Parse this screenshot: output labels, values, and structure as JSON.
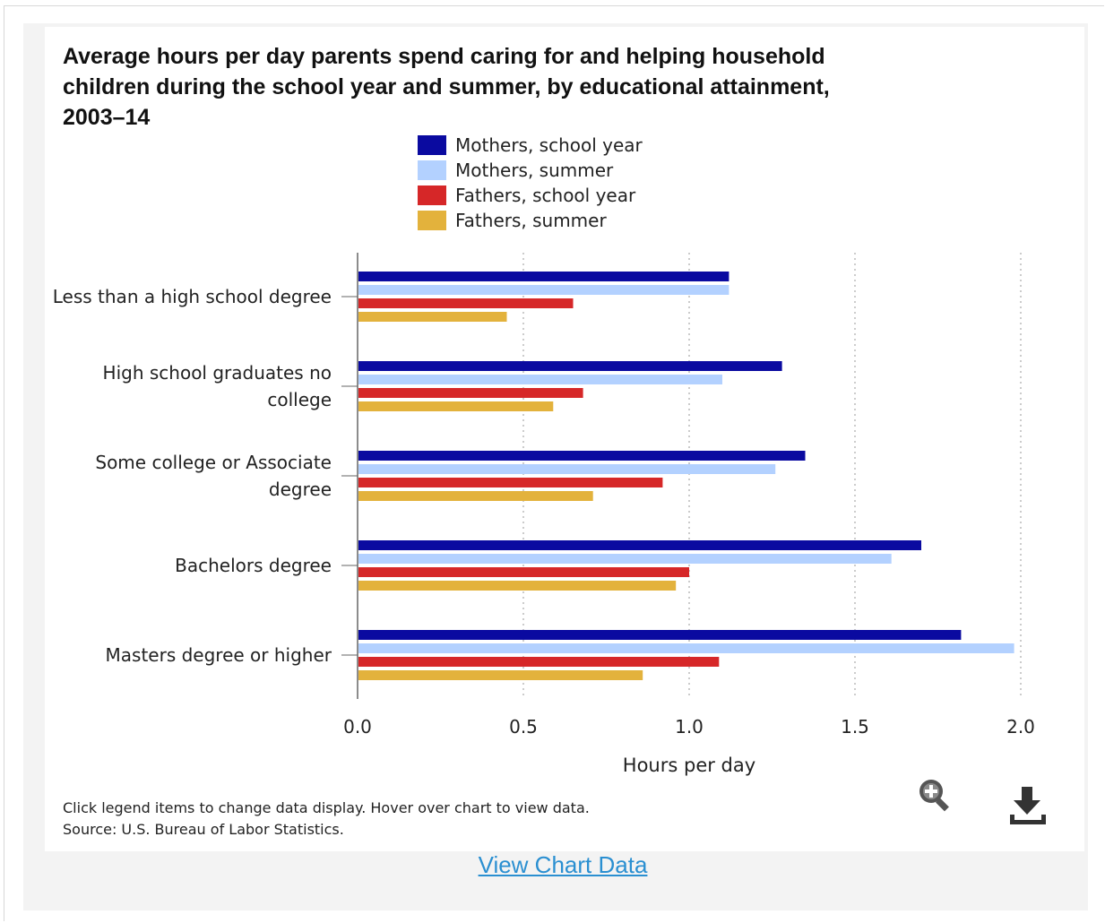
{
  "colors": {
    "mothers_school": "#0a0aa0",
    "mothers_summer": "#b3d1ff",
    "fathers_school": "#d62728",
    "fathers_summer": "#e3b23c",
    "grid": "#bbbbbb",
    "axis": "#666666",
    "link": "#2a8fd1"
  },
  "chart_data": {
    "type": "bar",
    "orientation": "horizontal",
    "title": "Average hours per day parents spend caring for and helping household children during the school year and summer, by educational attainment, 2003–14",
    "title_lines": [
      "Average hours per day parents spend caring for and helping household",
      "children during the school year and summer, by educational attainment,",
      "2003–14"
    ],
    "categories": [
      "Less than a high school degree",
      "High school graduates no college",
      "Some college or Associate degree",
      "Bachelors degree",
      "Masters degree or higher"
    ],
    "category_label_lines": [
      [
        "Less than a high school degree"
      ],
      [
        "High school graduates no",
        "college"
      ],
      [
        "Some college or Associate",
        "degree"
      ],
      [
        "Bachelors degree"
      ],
      [
        "Masters degree or higher"
      ]
    ],
    "series": [
      {
        "name": "Mothers, school year",
        "color_key": "mothers_school",
        "values": [
          1.12,
          1.28,
          1.35,
          1.7,
          1.82
        ]
      },
      {
        "name": "Mothers, summer",
        "color_key": "mothers_summer",
        "values": [
          1.12,
          1.1,
          1.26,
          1.61,
          1.98
        ]
      },
      {
        "name": "Fathers, school year",
        "color_key": "fathers_school",
        "values": [
          0.65,
          0.68,
          0.92,
          1.0,
          1.09
        ]
      },
      {
        "name": "Fathers, summer",
        "color_key": "fathers_summer",
        "values": [
          0.45,
          0.59,
          0.71,
          0.96,
          0.86
        ]
      }
    ],
    "xlabel": "Hours per day",
    "ylabel": "",
    "xlim": [
      0,
      2.0
    ],
    "ticks": [
      "0.0",
      "0.5",
      "1.0",
      "1.5",
      "2.0"
    ],
    "tick_values": [
      0,
      0.5,
      1.0,
      1.5,
      2.0
    ],
    "grid": true,
    "legend_position": "top"
  },
  "caption": {
    "line1": "Click legend items to change data display. Hover over chart to view data.",
    "line2": "Source: U.S. Bureau of Labor Statistics."
  },
  "icons": {
    "zoom": "zoom-in-icon",
    "download": "download-icon"
  },
  "link": {
    "view_chart_data": "View Chart Data"
  }
}
